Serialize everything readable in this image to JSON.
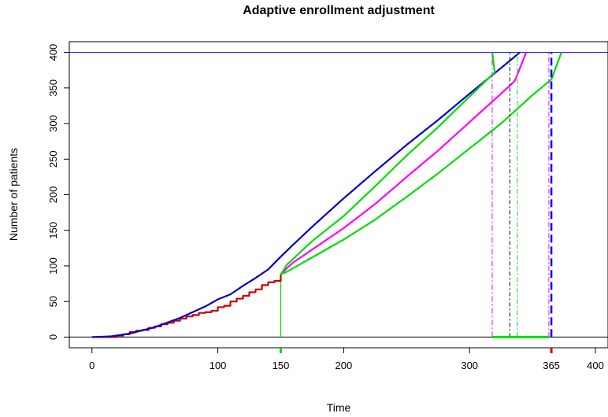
{
  "chart_data": {
    "type": "line",
    "title": "Adaptive enrollment adjustment",
    "xlabel": "Time",
    "ylabel": "Number of patients",
    "xlim": [
      -18,
      410
    ],
    "ylim": [
      -15,
      415
    ],
    "x_ticks": [
      0,
      100,
      150,
      200,
      300,
      365,
      400
    ],
    "x_tick_labels": [
      "0",
      "100",
      "150",
      "200",
      "300",
      "365",
      "400"
    ],
    "y_ticks": [
      0,
      50,
      100,
      150,
      200,
      250,
      300,
      350,
      400
    ],
    "y_tick_labels": [
      "0",
      "50",
      "100",
      "150",
      "200",
      "250",
      "300",
      "350",
      "400"
    ],
    "target_line": {
      "y": 400,
      "color": "#0000ff"
    },
    "zero_line": {
      "y": 0,
      "color": "#000000"
    },
    "interim_time": 150,
    "series": [
      {
        "color": "#cc0000",
        "style": "step",
        "points": [
          [
            0,
            0
          ],
          [
            15,
            0
          ],
          [
            20,
            2
          ],
          [
            25,
            4
          ],
          [
            30,
            7
          ],
          [
            35,
            9
          ],
          [
            40,
            10
          ],
          [
            45,
            13
          ],
          [
            50,
            15
          ],
          [
            55,
            18
          ],
          [
            60,
            20
          ],
          [
            65,
            23
          ],
          [
            70,
            26
          ],
          [
            75,
            29
          ],
          [
            80,
            31
          ],
          [
            85,
            34
          ],
          [
            90,
            35
          ],
          [
            95,
            37
          ],
          [
            100,
            42
          ],
          [
            105,
            44
          ],
          [
            110,
            50
          ],
          [
            115,
            54
          ],
          [
            120,
            58
          ],
          [
            125,
            63
          ],
          [
            130,
            67
          ],
          [
            135,
            73
          ],
          [
            140,
            77
          ],
          [
            145,
            79
          ],
          [
            150,
            88
          ]
        ]
      },
      {
        "color": "#0000cc",
        "style": "line",
        "points": [
          [
            0,
            0
          ],
          [
            15,
            1
          ],
          [
            30,
            5
          ],
          [
            50,
            14
          ],
          [
            70,
            27
          ],
          [
            90,
            43
          ],
          [
            100,
            53
          ],
          [
            110,
            60
          ],
          [
            120,
            72
          ],
          [
            130,
            83
          ],
          [
            140,
            95
          ],
          [
            150,
            113
          ],
          [
            160,
            130
          ],
          [
            175,
            155
          ],
          [
            200,
            195
          ],
          [
            225,
            233
          ],
          [
            250,
            270
          ],
          [
            275,
            305
          ],
          [
            300,
            342
          ],
          [
            325,
            378
          ],
          [
            340,
            400
          ]
        ]
      },
      {
        "color": "#ff00ff",
        "style": "line",
        "points": [
          [
            150,
            88
          ],
          [
            155,
            97
          ],
          [
            160,
            105
          ],
          [
            175,
            123
          ],
          [
            200,
            153
          ],
          [
            225,
            187
          ],
          [
            250,
            225
          ],
          [
            275,
            262
          ],
          [
            300,
            302
          ],
          [
            325,
            342
          ],
          [
            336,
            360
          ],
          [
            345,
            400
          ]
        ]
      },
      {
        "color": "#00dd00",
        "style": "line",
        "points": [
          [
            150,
            88
          ],
          [
            155,
            102
          ],
          [
            160,
            110
          ],
          [
            175,
            135
          ],
          [
            200,
            170
          ],
          [
            225,
            212
          ],
          [
            250,
            255
          ],
          [
            275,
            295
          ],
          [
            300,
            338
          ],
          [
            320,
            372
          ],
          [
            318,
            400
          ]
        ]
      },
      {
        "color": "#00dd00",
        "style": "line",
        "points": [
          [
            150,
            88
          ],
          [
            155,
            92
          ],
          [
            160,
            97
          ],
          [
            175,
            112
          ],
          [
            200,
            137
          ],
          [
            225,
            165
          ],
          [
            250,
            197
          ],
          [
            275,
            230
          ],
          [
            300,
            265
          ],
          [
            325,
            300
          ],
          [
            350,
            340
          ],
          [
            365,
            362
          ],
          [
            373,
            400
          ]
        ]
      }
    ],
    "vertical_markers": [
      {
        "x": 318,
        "color": "#ff00ff",
        "dash": "7 3 2 3"
      },
      {
        "x": 332,
        "color": "#000000",
        "dash": "5 3 2 3"
      },
      {
        "x": 338,
        "color": "#00dd00",
        "dash": "6 3 2 3"
      },
      {
        "x": 363,
        "color": "#ff00ff",
        "dash": "6 3 2 3"
      },
      {
        "x": 365,
        "color": "#0000ff",
        "dash": "10 5",
        "bold": true
      }
    ],
    "interval": {
      "x_start": 318,
      "x_end": 363,
      "y": 0,
      "color": "#00dd00"
    }
  }
}
